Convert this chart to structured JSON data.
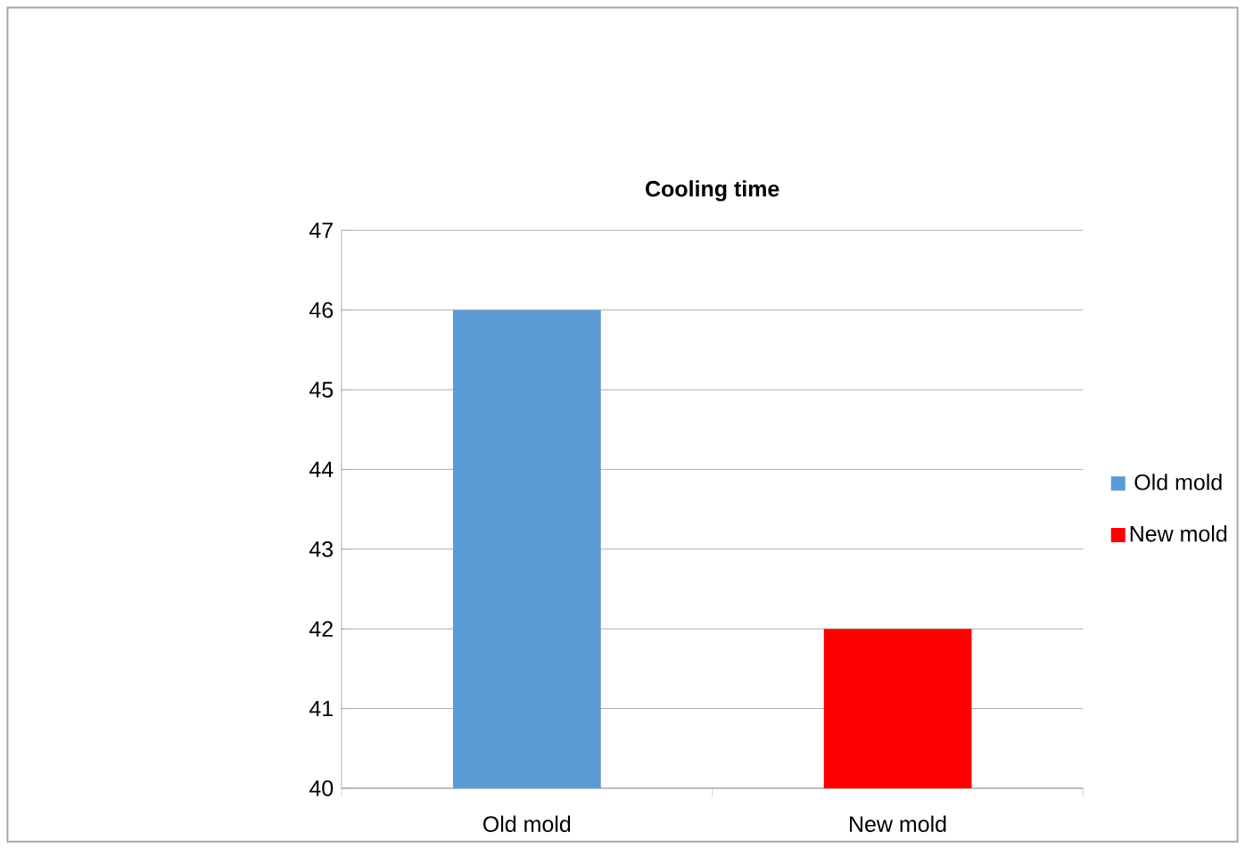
{
  "chart_data": {
    "type": "bar",
    "title": "Cooling time",
    "categories": [
      "Old mold",
      "New mold"
    ],
    "series": [
      {
        "name": "Old mold",
        "color": "#5b9bd5",
        "values": [
          46,
          null
        ]
      },
      {
        "name": "New mold",
        "color": "#ff0000",
        "values": [
          null,
          42
        ]
      }
    ],
    "ylim": [
      40,
      47
    ],
    "yticks": [
      40,
      41,
      42,
      43,
      44,
      45,
      46,
      47
    ],
    "grid": "y",
    "legend": "right"
  }
}
